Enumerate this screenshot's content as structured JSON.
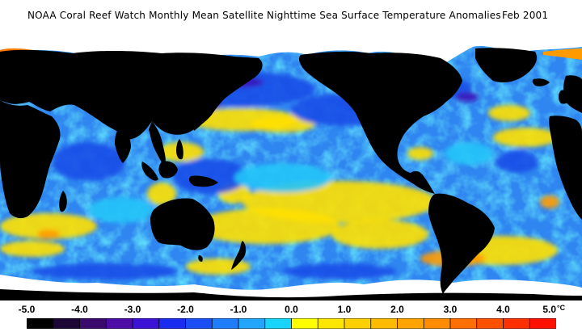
{
  "title": "NOAA Coral Reef Watch Monthly Mean Satellite Nighttime Sea Surface Temperature Anomalies",
  "date": "Feb 2001",
  "colorbar": {
    "labels": [
      "-5.0",
      "-4.0",
      "-3.0",
      "-2.0",
      "-1.0",
      "0.0",
      "1.0",
      "2.0",
      "3.0",
      "4.0",
      "5.0"
    ],
    "unit": "°C",
    "colors": [
      "#000000",
      "#1c0636",
      "#3a0a6e",
      "#4d0ca6",
      "#3b12d6",
      "#1a2cf0",
      "#1b4ff5",
      "#1f7dfc",
      "#22a6fb",
      "#19d4fa",
      "#ffff00",
      "#ffe600",
      "#ffd000",
      "#ffbb00",
      "#ffa300",
      "#ff8c00",
      "#ff6e00",
      "#ff5000",
      "#ff3000",
      "#ff1000"
    ]
  },
  "map_colors": {
    "land": "#000000",
    "ice": "#ffffff",
    "ocean_base": "#2f86f0",
    "cool": "#1a4de8",
    "deep_cool": "#3a10b8",
    "neutral": "#22c4f8",
    "warm": "#ffe000",
    "hot": "#ff9a00"
  }
}
